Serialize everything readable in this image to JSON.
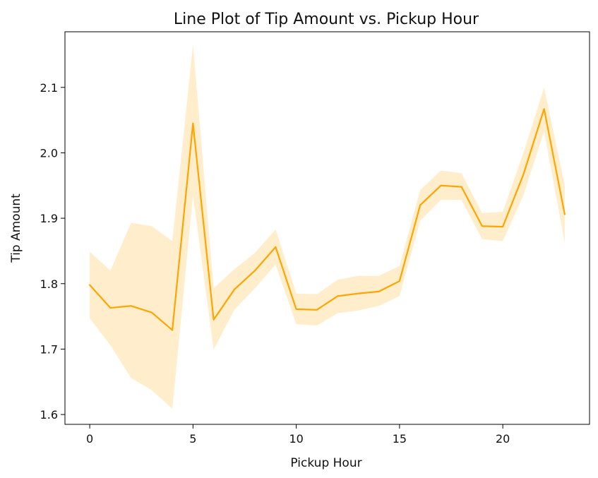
{
  "colors": {
    "line": "#FFA500",
    "band": "#FFA500",
    "axis": "#000000",
    "background": "#ffffff"
  },
  "chart_data": {
    "type": "line",
    "title": "Line Plot of Tip Amount vs. Pickup Hour",
    "xlabel": "Pickup Hour",
    "ylabel": "Tip Amount",
    "xlim": [
      -1.2,
      24.2
    ],
    "ylim": [
      1.585,
      2.185
    ],
    "xticks": [
      0,
      5,
      10,
      15,
      20
    ],
    "yticks": [
      1.6,
      1.7,
      1.8,
      1.9,
      2.0,
      2.1
    ],
    "ytick_labels": [
      "1.6",
      "1.7",
      "1.8",
      "1.9",
      "2.0",
      "2.1"
    ],
    "grid": false,
    "series": [
      {
        "x": [
          0,
          1,
          2,
          3,
          4,
          5,
          6,
          7,
          8,
          9,
          10,
          11,
          12,
          13,
          14,
          15,
          16,
          17,
          18,
          19,
          20,
          21,
          22,
          23
        ],
        "y": [
          1.798,
          1.763,
          1.766,
          1.756,
          1.729,
          2.045,
          1.745,
          1.791,
          1.82,
          1.856,
          1.761,
          1.76,
          1.781,
          1.785,
          1.788,
          1.804,
          1.92,
          1.95,
          1.948,
          1.888,
          1.887,
          1.967,
          2.067,
          1.906
        ],
        "ci_lower": [
          1.747,
          1.706,
          1.656,
          1.637,
          1.609,
          1.935,
          1.699,
          1.76,
          1.793,
          1.829,
          1.738,
          1.736,
          1.755,
          1.759,
          1.766,
          1.781,
          1.896,
          1.928,
          1.928,
          1.868,
          1.865,
          1.935,
          2.033,
          1.862
        ],
        "ci_upper": [
          1.849,
          1.82,
          1.893,
          1.888,
          1.865,
          2.165,
          1.793,
          1.822,
          1.847,
          1.883,
          1.785,
          1.784,
          1.806,
          1.812,
          1.812,
          1.827,
          1.943,
          1.973,
          1.969,
          1.908,
          1.91,
          2.0,
          2.1,
          1.951
        ]
      }
    ]
  }
}
